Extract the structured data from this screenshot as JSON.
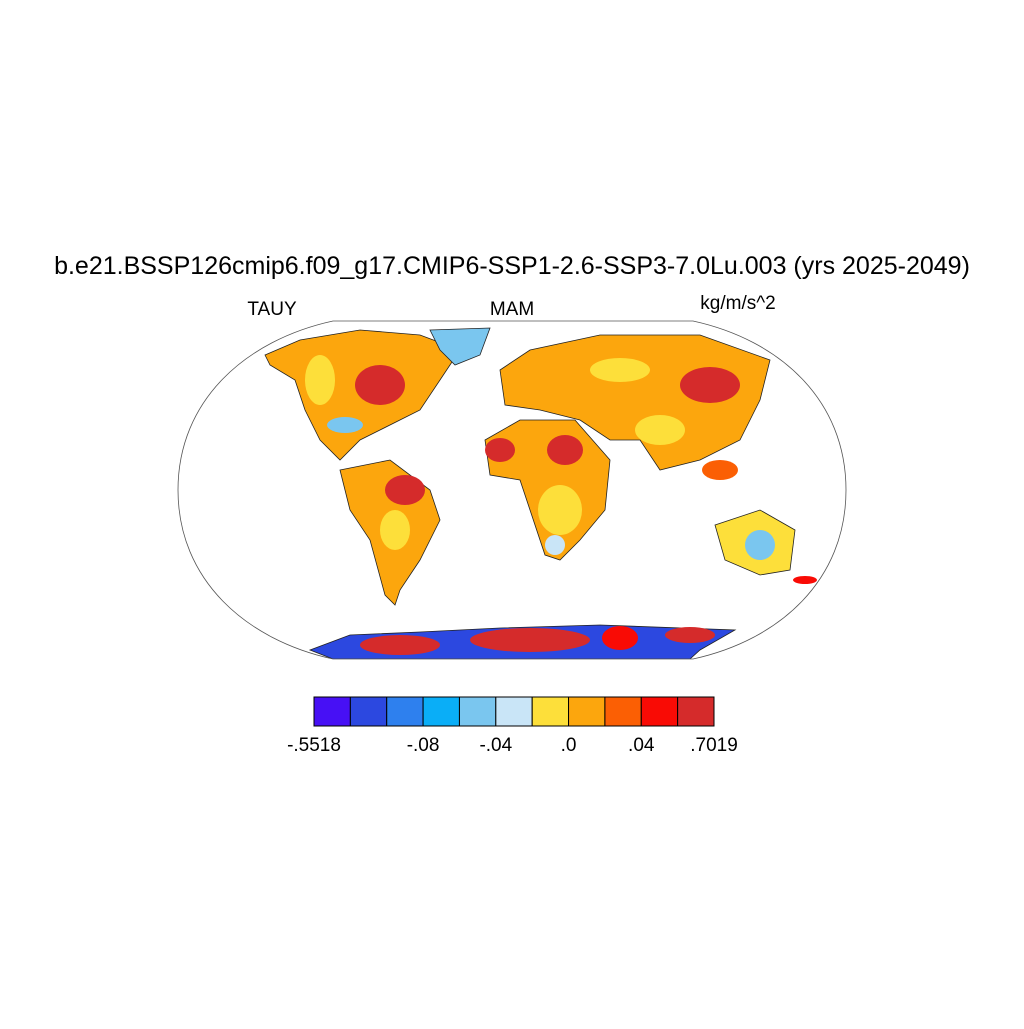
{
  "title": "b.e21.BSSP126cmip6.f09_g17.CMIP6-SSP1-2.6-SSP3-7.0Lu.003 (yrs 2025-2049)",
  "left_label": "TAUY",
  "center_label": "MAM",
  "right_label": "kg/m/s^2",
  "colorbar": {
    "colors": [
      "#4710f5",
      "#2c48e0",
      "#2e80ee",
      "#0aaef7",
      "#7ac6ef",
      "#c9e5f7",
      "#fddf3a",
      "#fca60d",
      "#fb5f04",
      "#f90b05",
      "#d52b2b"
    ],
    "labels": [
      {
        "value": -0.5518,
        "label": "-.5518"
      },
      {
        "value": -0.08,
        "label": "-.08"
      },
      {
        "value": -0.04,
        "label": "-.04"
      },
      {
        "value": 0,
        "label": ".0"
      },
      {
        "value": 0.04,
        "label": ".04"
      },
      {
        "value": 0.7019,
        "label": ".7019"
      }
    ]
  }
}
